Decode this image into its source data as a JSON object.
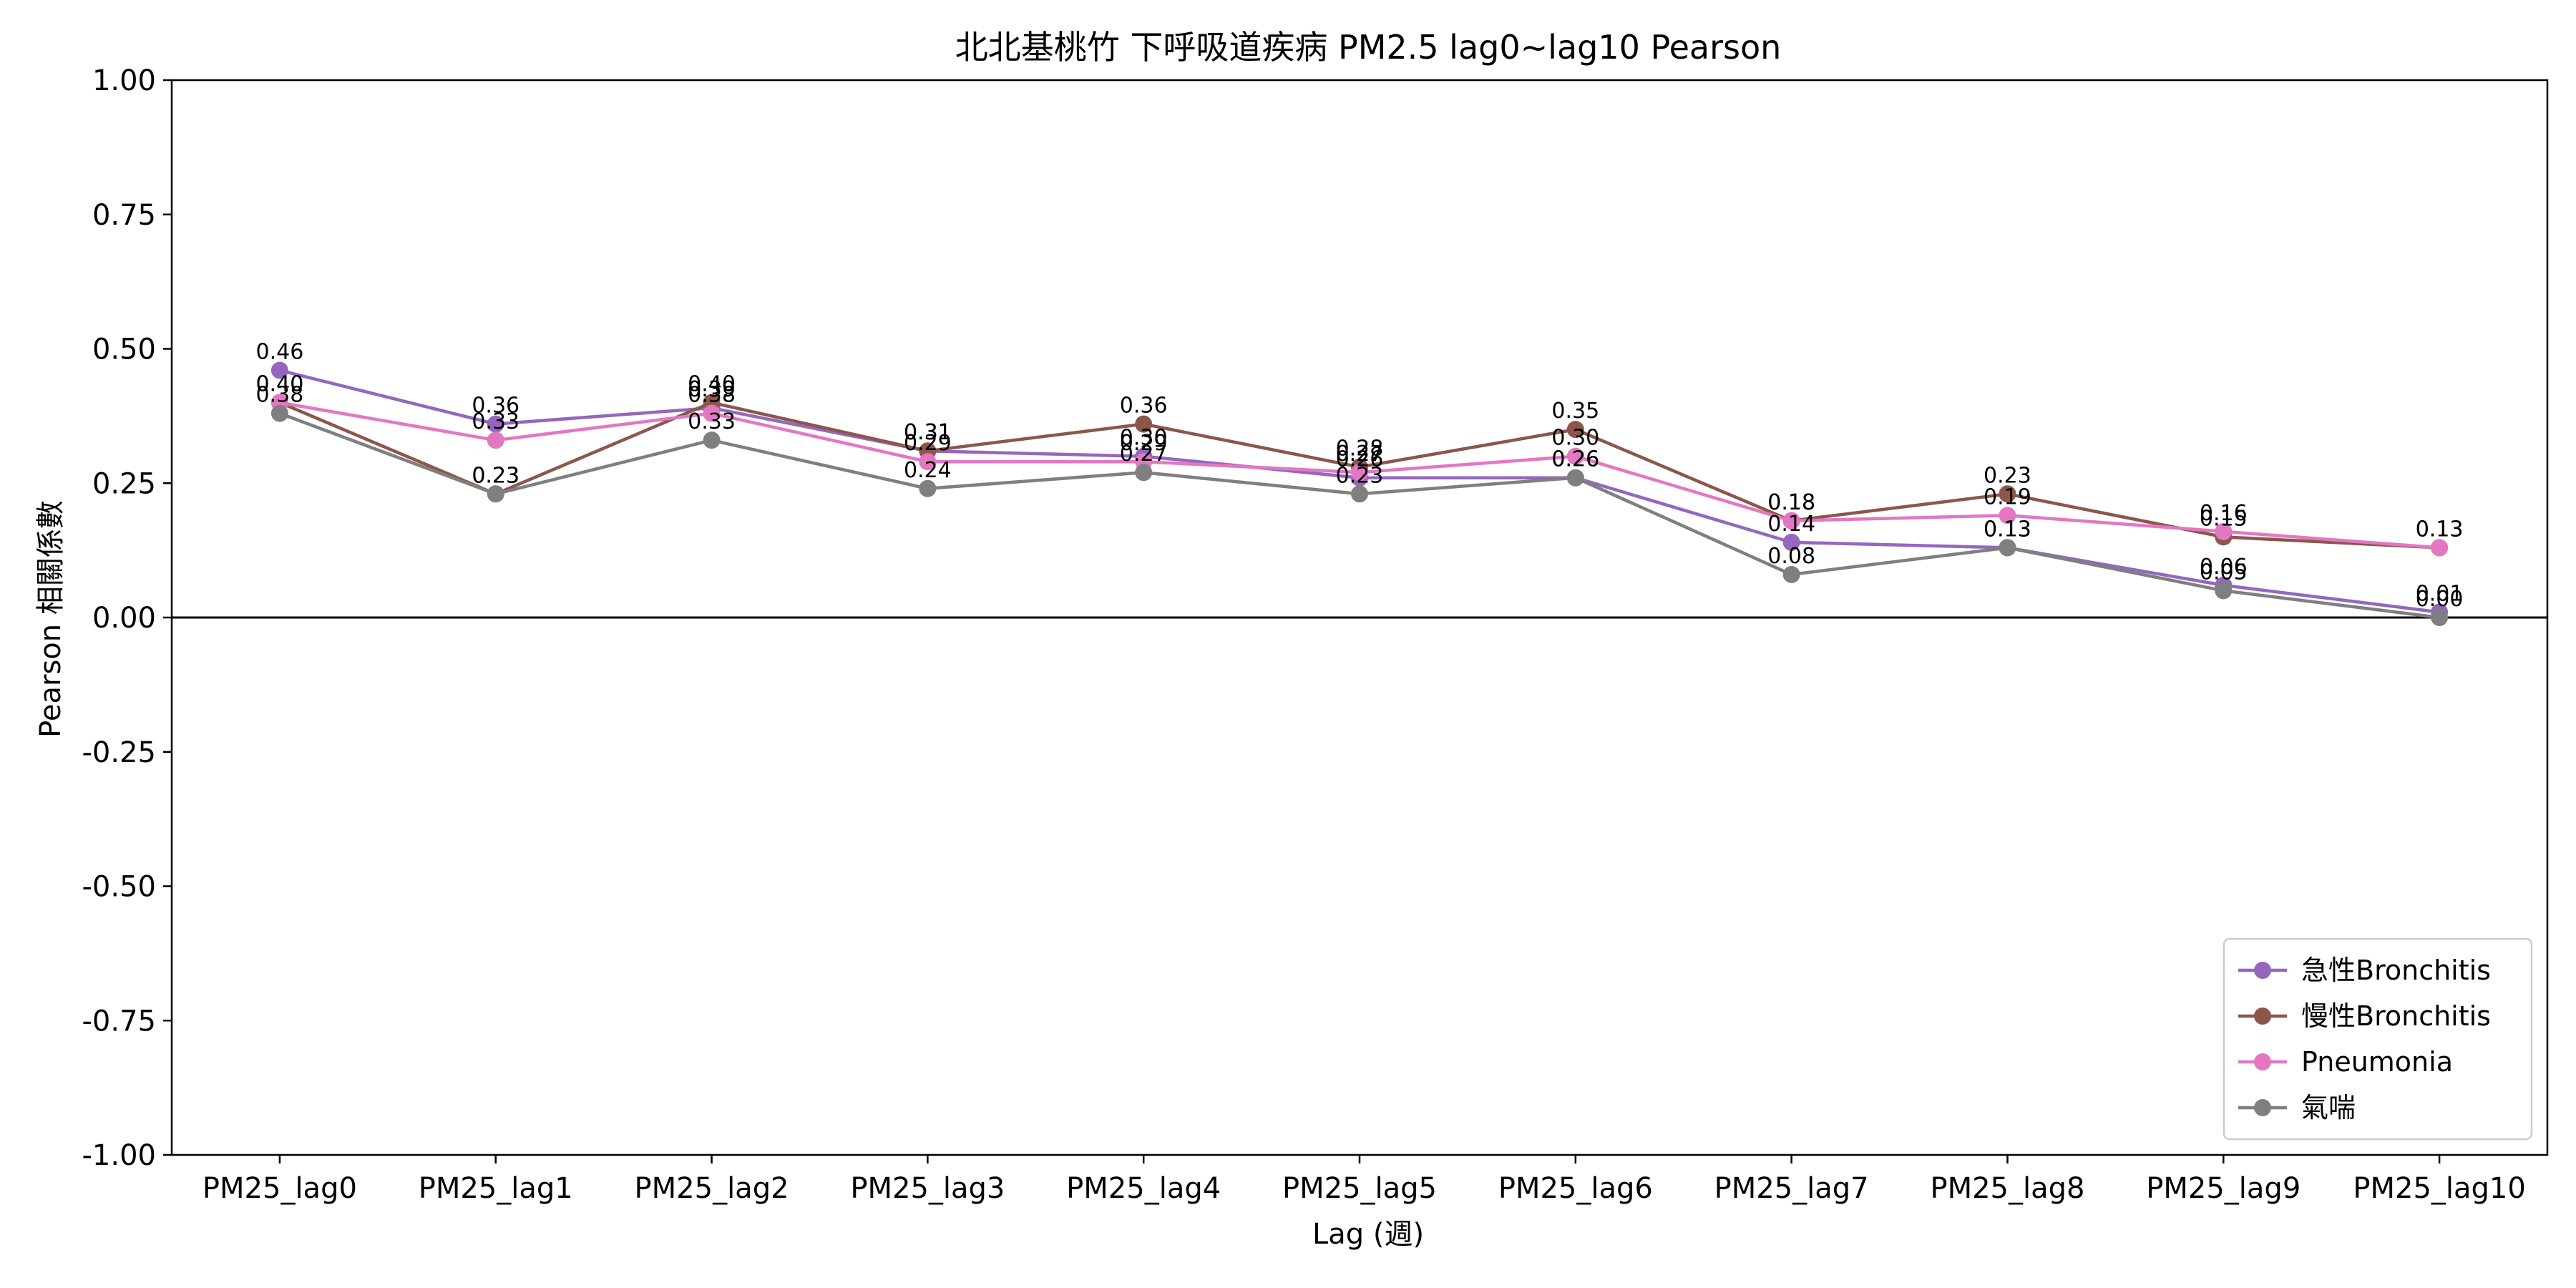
{
  "chart_data": {
    "type": "line",
    "title": "北北基桃竹 下呼吸道疾病 PM2.5 lag0~lag10 Pearson",
    "xlabel": "Lag (週)",
    "ylabel": "Pearson 相關係數",
    "ylim": [
      -1.0,
      1.0
    ],
    "yticks": [
      "-1.00",
      "-0.75",
      "-0.50",
      "-0.25",
      "0.00",
      "0.25",
      "0.50",
      "0.75",
      "1.00"
    ],
    "ytick_values": [
      -1.0,
      -0.75,
      -0.5,
      -0.25,
      0.0,
      0.25,
      0.5,
      0.75,
      1.0
    ],
    "categories": [
      "PM25_lag0",
      "PM25_lag1",
      "PM25_lag2",
      "PM25_lag3",
      "PM25_lag4",
      "PM25_lag5",
      "PM25_lag6",
      "PM25_lag7",
      "PM25_lag8",
      "PM25_lag9",
      "PM25_lag10"
    ],
    "zero_line": true,
    "legend_position": "lower-right",
    "series": [
      {
        "name": "急性Bronchitis",
        "color": "#9467bd",
        "values": [
          0.46,
          0.36,
          0.39,
          0.31,
          0.3,
          0.26,
          0.26,
          0.14,
          0.13,
          0.06,
          0.01
        ]
      },
      {
        "name": "慢性Bronchitis",
        "color": "#8c564b",
        "values": [
          0.4,
          0.23,
          0.4,
          0.31,
          0.36,
          0.28,
          0.35,
          0.18,
          0.23,
          0.15,
          0.13
        ]
      },
      {
        "name": "Pneumonia",
        "color": "#e377c2",
        "values": [
          0.4,
          0.33,
          0.38,
          0.29,
          0.29,
          0.27,
          0.3,
          0.18,
          0.19,
          0.16,
          0.13
        ]
      },
      {
        "name": "氣喘",
        "color": "#7f7f7f",
        "values": [
          0.38,
          0.23,
          0.33,
          0.24,
          0.27,
          0.23,
          0.26,
          0.08,
          0.13,
          0.05,
          0.0
        ]
      }
    ]
  }
}
